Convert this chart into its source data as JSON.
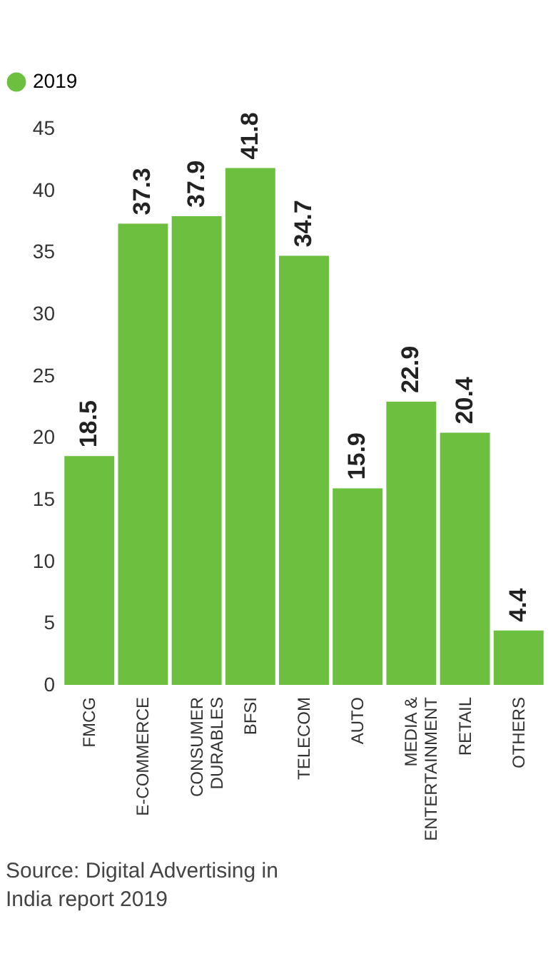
{
  "chart_data": {
    "type": "bar",
    "categories": [
      "FMCG",
      "E-COMMERCE",
      "CONSUMER\nDURABLES",
      "BFSI",
      "TELECOM",
      "AUTO",
      "MEDIA &\nENTERTAINMENT",
      "RETAIL",
      "OTHERS"
    ],
    "series": [
      {
        "name": "2019",
        "color": "#6cbf3f",
        "values": [
          18.5,
          37.3,
          37.9,
          41.8,
          34.7,
          15.9,
          22.9,
          20.4,
          4.4
        ]
      }
    ],
    "ylim": [
      0,
      45
    ],
    "yticks": [
      0,
      5,
      10,
      15,
      20,
      25,
      30,
      35,
      40,
      45
    ],
    "data_labels": true,
    "grid": false,
    "legend": "top left",
    "annotations": [
      "Source: Digital Advertising in\nIndia report 2019"
    ]
  }
}
